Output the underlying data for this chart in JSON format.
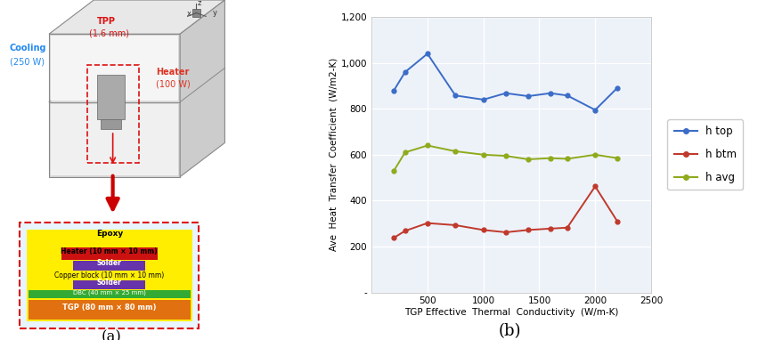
{
  "x_htop": [
    200,
    300,
    500,
    750,
    1000,
    1200,
    1400,
    1600,
    1750,
    2000,
    2200
  ],
  "y_htop": [
    880,
    960,
    1040,
    858,
    840,
    868,
    855,
    868,
    858,
    795,
    892
  ],
  "x_hbtm": [
    200,
    300,
    500,
    750,
    1000,
    1200,
    1400,
    1600,
    1750,
    2000,
    2200
  ],
  "y_hbtm": [
    238,
    268,
    302,
    293,
    272,
    262,
    272,
    278,
    282,
    462,
    308
  ],
  "x_havg": [
    200,
    300,
    500,
    750,
    1000,
    1200,
    1400,
    1600,
    1750,
    2000,
    2200
  ],
  "y_havg": [
    530,
    610,
    640,
    615,
    600,
    595,
    580,
    585,
    582,
    600,
    585
  ],
  "color_htop": "#3b6cc7",
  "color_hbtm": "#c0392b",
  "color_havg": "#8faa1c",
  "xlabel": "TGP Effective  Thermal  Conductivity  (W/m-K)",
  "ylabel": "Ave  Heat  Transfer  Coefficient  (W/m2-K)",
  "xlim": [
    0,
    2500
  ],
  "ylim": [
    0,
    1200
  ],
  "xticks": [
    0,
    500,
    1000,
    1500,
    2000,
    2500
  ],
  "yticks": [
    0,
    200,
    400,
    600,
    800,
    1000,
    1200
  ],
  "ytick_labels": [
    "-",
    "200",
    "400",
    "600",
    "800",
    "1,000",
    "1,200"
  ],
  "label_htop": "h top",
  "label_hbtm": "h btm",
  "label_havg": "h avg",
  "title_a": "(a)",
  "title_b": "(b)",
  "bg_color": "#ffffff",
  "plot_bg": "#edf2f9"
}
